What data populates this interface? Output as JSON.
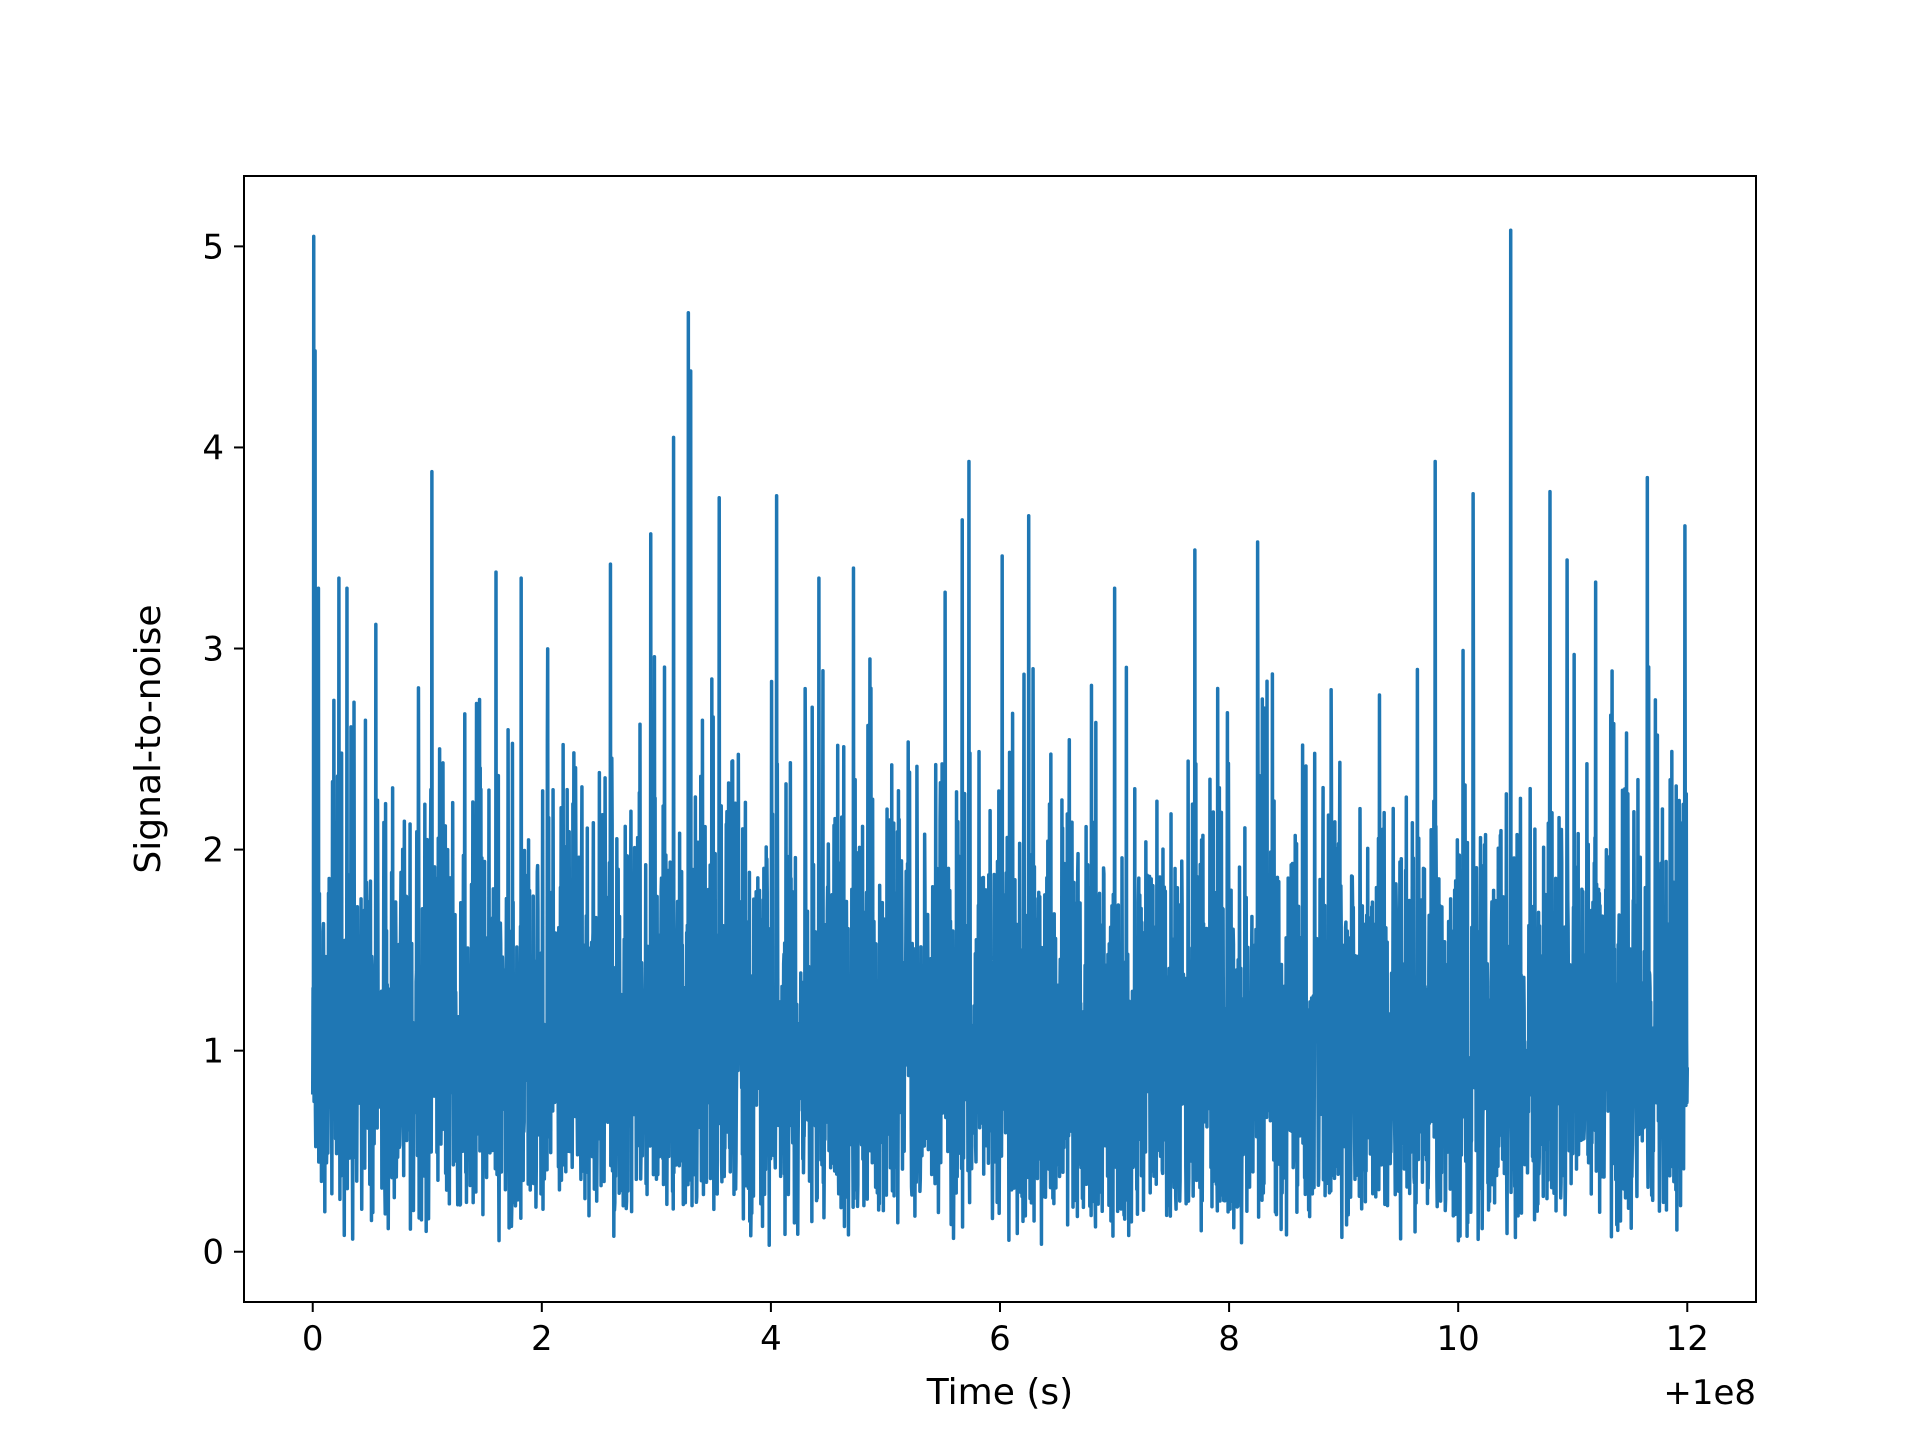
{
  "chart_data": {
    "type": "line",
    "title": "",
    "xlabel": "Time (s)",
    "ylabel": "Signal-to-noise",
    "x_offset_label": "+1e8",
    "xlim": [
      -0.6,
      12.6
    ],
    "ylim": [
      -0.25,
      5.35
    ],
    "x_ticks": [
      0,
      2,
      4,
      6,
      8,
      10,
      12
    ],
    "x_tick_labels": [
      "0",
      "2",
      "4",
      "6",
      "8",
      "10",
      "12"
    ],
    "y_ticks": [
      0,
      1,
      2,
      3,
      4,
      5
    ],
    "y_tick_labels": [
      "0",
      "1",
      "2",
      "3",
      "4",
      "5"
    ],
    "grid": false,
    "legend": "none",
    "line_color": "#1f77b4",
    "x_range": [
      0,
      12
    ],
    "series": [
      {
        "sampling": "dense noise, approx. 4096 samples over x_range",
        "baseline_mean": 1.2,
        "typical_range": [
          0.1,
          2.6
        ],
        "peaks": [
          {
            "x": 0.01,
            "y": 5.05
          },
          {
            "x": 0.02,
            "y": 4.48
          },
          {
            "x": 0.05,
            "y": 3.3
          },
          {
            "x": 0.23,
            "y": 3.35
          },
          {
            "x": 0.3,
            "y": 3.3
          },
          {
            "x": 0.55,
            "y": 3.12
          },
          {
            "x": 1.04,
            "y": 3.88
          },
          {
            "x": 1.6,
            "y": 3.38
          },
          {
            "x": 1.82,
            "y": 3.35
          },
          {
            "x": 2.6,
            "y": 3.42
          },
          {
            "x": 2.95,
            "y": 3.57
          },
          {
            "x": 3.15,
            "y": 4.05
          },
          {
            "x": 3.28,
            "y": 4.67
          },
          {
            "x": 3.3,
            "y": 4.38
          },
          {
            "x": 3.55,
            "y": 3.75
          },
          {
            "x": 4.05,
            "y": 3.76
          },
          {
            "x": 4.42,
            "y": 3.35
          },
          {
            "x": 4.72,
            "y": 3.4
          },
          {
            "x": 5.52,
            "y": 3.28
          },
          {
            "x": 5.67,
            "y": 3.64
          },
          {
            "x": 5.73,
            "y": 3.93
          },
          {
            "x": 6.02,
            "y": 3.46
          },
          {
            "x": 6.25,
            "y": 3.66
          },
          {
            "x": 7.0,
            "y": 3.3
          },
          {
            "x": 7.7,
            "y": 3.49
          },
          {
            "x": 8.25,
            "y": 3.53
          },
          {
            "x": 9.8,
            "y": 3.93
          },
          {
            "x": 10.13,
            "y": 3.77
          },
          {
            "x": 10.46,
            "y": 5.08
          },
          {
            "x": 10.8,
            "y": 3.78
          },
          {
            "x": 10.95,
            "y": 3.44
          },
          {
            "x": 11.2,
            "y": 3.33
          },
          {
            "x": 11.65,
            "y": 3.85
          },
          {
            "x": 11.98,
            "y": 3.61
          }
        ]
      }
    ]
  }
}
